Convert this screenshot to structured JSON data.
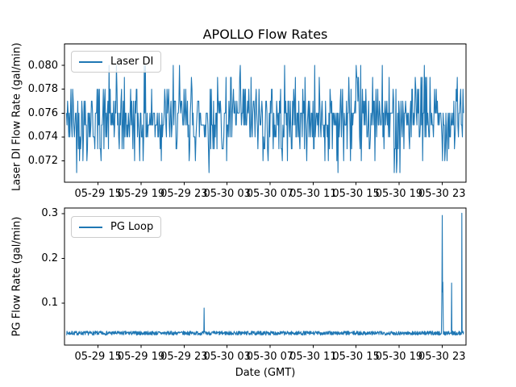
{
  "figure": {
    "title": "APOLLO Flow Rates",
    "background_color": "#ffffff",
    "axis_color": "#000000",
    "line_color": "#1f77b4"
  },
  "chart_data": [
    {
      "type": "line",
      "title": "APOLLO Flow Rates",
      "ylabel": "Laser DI Flow Rate (gal/min)",
      "xlabel": "",
      "grid": false,
      "legend_position": "upper left",
      "x_axis": {
        "tick_labels": [
          "05-29 15",
          "05-29 19",
          "05-29 23",
          "05-30 03",
          "05-30 07",
          "05-30 11",
          "05-30 15",
          "05-30 19",
          "05-30 23"
        ],
        "tick_hours": [
          3,
          7,
          11,
          15,
          19,
          23,
          27,
          31,
          35
        ],
        "lim_hours": [
          -0.13,
          37.23
        ]
      },
      "y_axis": {
        "tick_labels": [
          "0.072",
          "0.074",
          "0.076",
          "0.078",
          "0.080"
        ],
        "tick_values": [
          0.072,
          0.074,
          0.076,
          0.078,
          0.08
        ],
        "lim": [
          0.0702,
          0.0818
        ]
      },
      "series": [
        {
          "name": "Laser DI",
          "color": "#1f77b4",
          "gen": "quantized_noise",
          "n_points": 700,
          "t_start": 0.05,
          "t_end": 37.0,
          "seed": 42,
          "levels": [
            0.071,
            0.072,
            0.073,
            0.074,
            0.075,
            0.076,
            0.077,
            0.078,
            0.079,
            0.08,
            0.081
          ],
          "weights": [
            0.4,
            4.5,
            9,
            16,
            21,
            21,
            15,
            8,
            4,
            1.2,
            0.4
          ],
          "value_min": 0.071,
          "value_max": 0.081,
          "typical_value": 0.0755
        }
      ]
    },
    {
      "type": "line",
      "title": "",
      "ylabel": "PG Flow Rate (gal/min)",
      "xlabel": "Date (GMT)",
      "grid": false,
      "legend_position": "upper left",
      "x_axis": {
        "tick_labels": [
          "05-29 15",
          "05-29 19",
          "05-29 23",
          "05-30 03",
          "05-30 07",
          "05-30 11",
          "05-30 15",
          "05-30 19",
          "05-30 23"
        ],
        "tick_hours": [
          3,
          7,
          11,
          15,
          19,
          23,
          27,
          31,
          35
        ],
        "lim_hours": [
          -0.13,
          37.23
        ]
      },
      "y_axis": {
        "tick_labels": [
          "0.1",
          "0.2",
          "0.3"
        ],
        "tick_values": [
          0.1,
          0.2,
          0.3
        ],
        "lim": [
          0.0063,
          0.3126
        ]
      },
      "series": [
        {
          "name": "PG Loop",
          "color": "#1f77b4",
          "gen": "uniform_noise",
          "n_points": 1400,
          "t_start": 0.05,
          "t_end": 37.0,
          "seed": 7,
          "baseline": 0.033,
          "noise_amplitude": 0.0045,
          "spikes": [
            {
              "t": 12.85,
              "value": 0.089
            },
            {
              "t": 34.97,
              "value": 0.09
            },
            {
              "t": 35.0,
              "value": 0.147
            },
            {
              "t": 35.03,
              "value": 0.296
            },
            {
              "t": 35.05,
              "value": 0.125
            },
            {
              "t": 35.08,
              "value": 0.147
            },
            {
              "t": 35.11,
              "value": 0.086
            },
            {
              "t": 35.88,
              "value": 0.145
            },
            {
              "t": 36.85,
              "value": 0.301
            }
          ]
        }
      ]
    }
  ]
}
